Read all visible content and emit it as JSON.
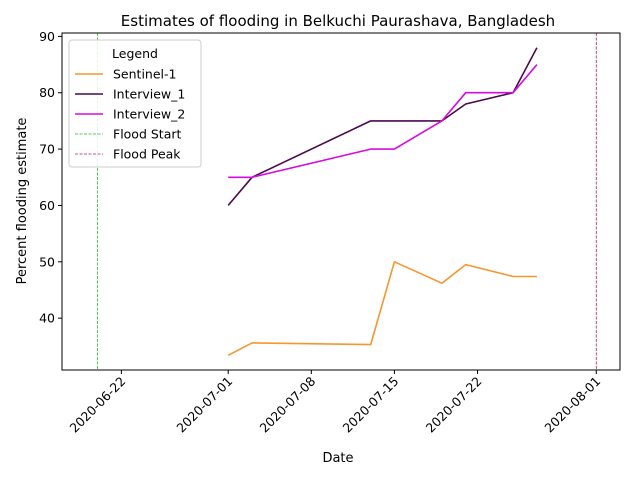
{
  "chart_data": {
    "type": "line",
    "title": "Estimates of flooding in Belkuchi Paurashava, Bangladesh",
    "xlabel": "Date",
    "ylabel": "Percent flooding estimate",
    "xlim": [
      "2020-06-17",
      "2020-08-03"
    ],
    "ylim": [
      30.8,
      90.6
    ],
    "x_ticks": [
      "2020-06-22",
      "2020-07-01",
      "2020-07-08",
      "2020-07-15",
      "2020-07-22",
      "2020-08-01"
    ],
    "y_ticks": [
      40,
      50,
      60,
      70,
      80,
      90
    ],
    "grid": false,
    "legend": {
      "title": "Legend",
      "placement": "top-left"
    },
    "series": [
      {
        "name": "Sentinel-1",
        "color": "#f7962f",
        "points": [
          {
            "x": "2020-07-01",
            "y": 33.4
          },
          {
            "x": "2020-07-03",
            "y": 35.6
          },
          {
            "x": "2020-07-13",
            "y": 35.3
          },
          {
            "x": "2020-07-15",
            "y": 50.0
          },
          {
            "x": "2020-07-19",
            "y": 46.2
          },
          {
            "x": "2020-07-21",
            "y": 49.5
          },
          {
            "x": "2020-07-25",
            "y": 47.4
          },
          {
            "x": "2020-07-27",
            "y": 47.4
          }
        ]
      },
      {
        "name": "Interview_1",
        "color": "#4b0a4e",
        "points": [
          {
            "x": "2020-07-01",
            "y": 60
          },
          {
            "x": "2020-07-03",
            "y": 65
          },
          {
            "x": "2020-07-13",
            "y": 75
          },
          {
            "x": "2020-07-19",
            "y": 75
          },
          {
            "x": "2020-07-21",
            "y": 78
          },
          {
            "x": "2020-07-25",
            "y": 80
          },
          {
            "x": "2020-07-27",
            "y": 88
          }
        ]
      },
      {
        "name": "Interview_2",
        "color": "#d60be0",
        "points": [
          {
            "x": "2020-07-01",
            "y": 65
          },
          {
            "x": "2020-07-03",
            "y": 65
          },
          {
            "x": "2020-07-13",
            "y": 70
          },
          {
            "x": "2020-07-15",
            "y": 70
          },
          {
            "x": "2020-07-19",
            "y": 75
          },
          {
            "x": "2020-07-21",
            "y": 80
          },
          {
            "x": "2020-07-25",
            "y": 80
          },
          {
            "x": "2020-07-27",
            "y": 85
          }
        ]
      }
    ],
    "vlines": [
      {
        "name": "Flood Start",
        "x": "2020-06-20",
        "color": "#22bb22"
      },
      {
        "name": "Flood Peak",
        "x": "2020-08-01",
        "color": "#c2185b"
      }
    ]
  }
}
